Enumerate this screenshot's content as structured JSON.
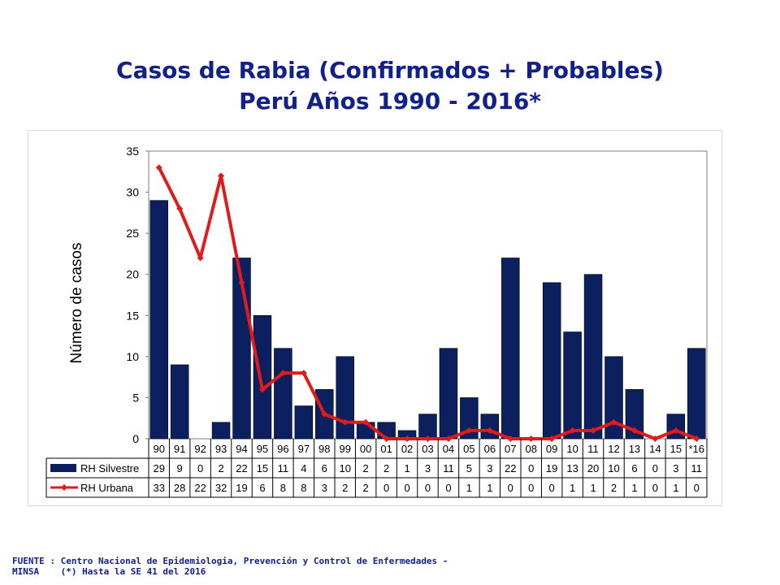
{
  "slide": {
    "title_line1": "Casos de Rabia (Confirmados + Probables)",
    "title_line2": "Perú Años 1990 - 2016*",
    "source_line1": "FUENTE : Centro Nacional de Epidemiologia, Prevención y Control de Enfermedades -",
    "source_line2": "MINSA    (*) Hasta la SE 41 del 2016"
  },
  "chart_data": {
    "type": "bar",
    "title": "",
    "xlabel": "",
    "ylabel": "Número de casos",
    "ylim": [
      0,
      35
    ],
    "yticks": [
      0,
      5,
      10,
      15,
      20,
      25,
      30,
      35
    ],
    "grid": false,
    "legend": "data-table",
    "categories": [
      "90",
      "91",
      "92",
      "93",
      "94",
      "95",
      "96",
      "97",
      "98",
      "99",
      "00",
      "01",
      "02",
      "03",
      "04",
      "05",
      "06",
      "07",
      "08",
      "09",
      "10",
      "11",
      "12",
      "13",
      "14",
      "15",
      "*16"
    ],
    "series": [
      {
        "name": "RH Silvestre",
        "type": "bar",
        "color": "#0c1f5e",
        "values": [
          29,
          9,
          0,
          2,
          22,
          15,
          11,
          4,
          6,
          10,
          2,
          2,
          1,
          3,
          11,
          5,
          3,
          22,
          0,
          19,
          13,
          20,
          10,
          6,
          0,
          3,
          11
        ]
      },
      {
        "name": "RH Urbana",
        "type": "line",
        "color": "#e11b1b",
        "values": [
          33,
          28,
          22,
          32,
          19,
          6,
          8,
          8,
          3,
          2,
          2,
          0,
          0,
          0,
          0,
          1,
          1,
          0,
          0,
          0,
          1,
          1,
          2,
          1,
          0,
          1,
          0
        ]
      }
    ]
  }
}
